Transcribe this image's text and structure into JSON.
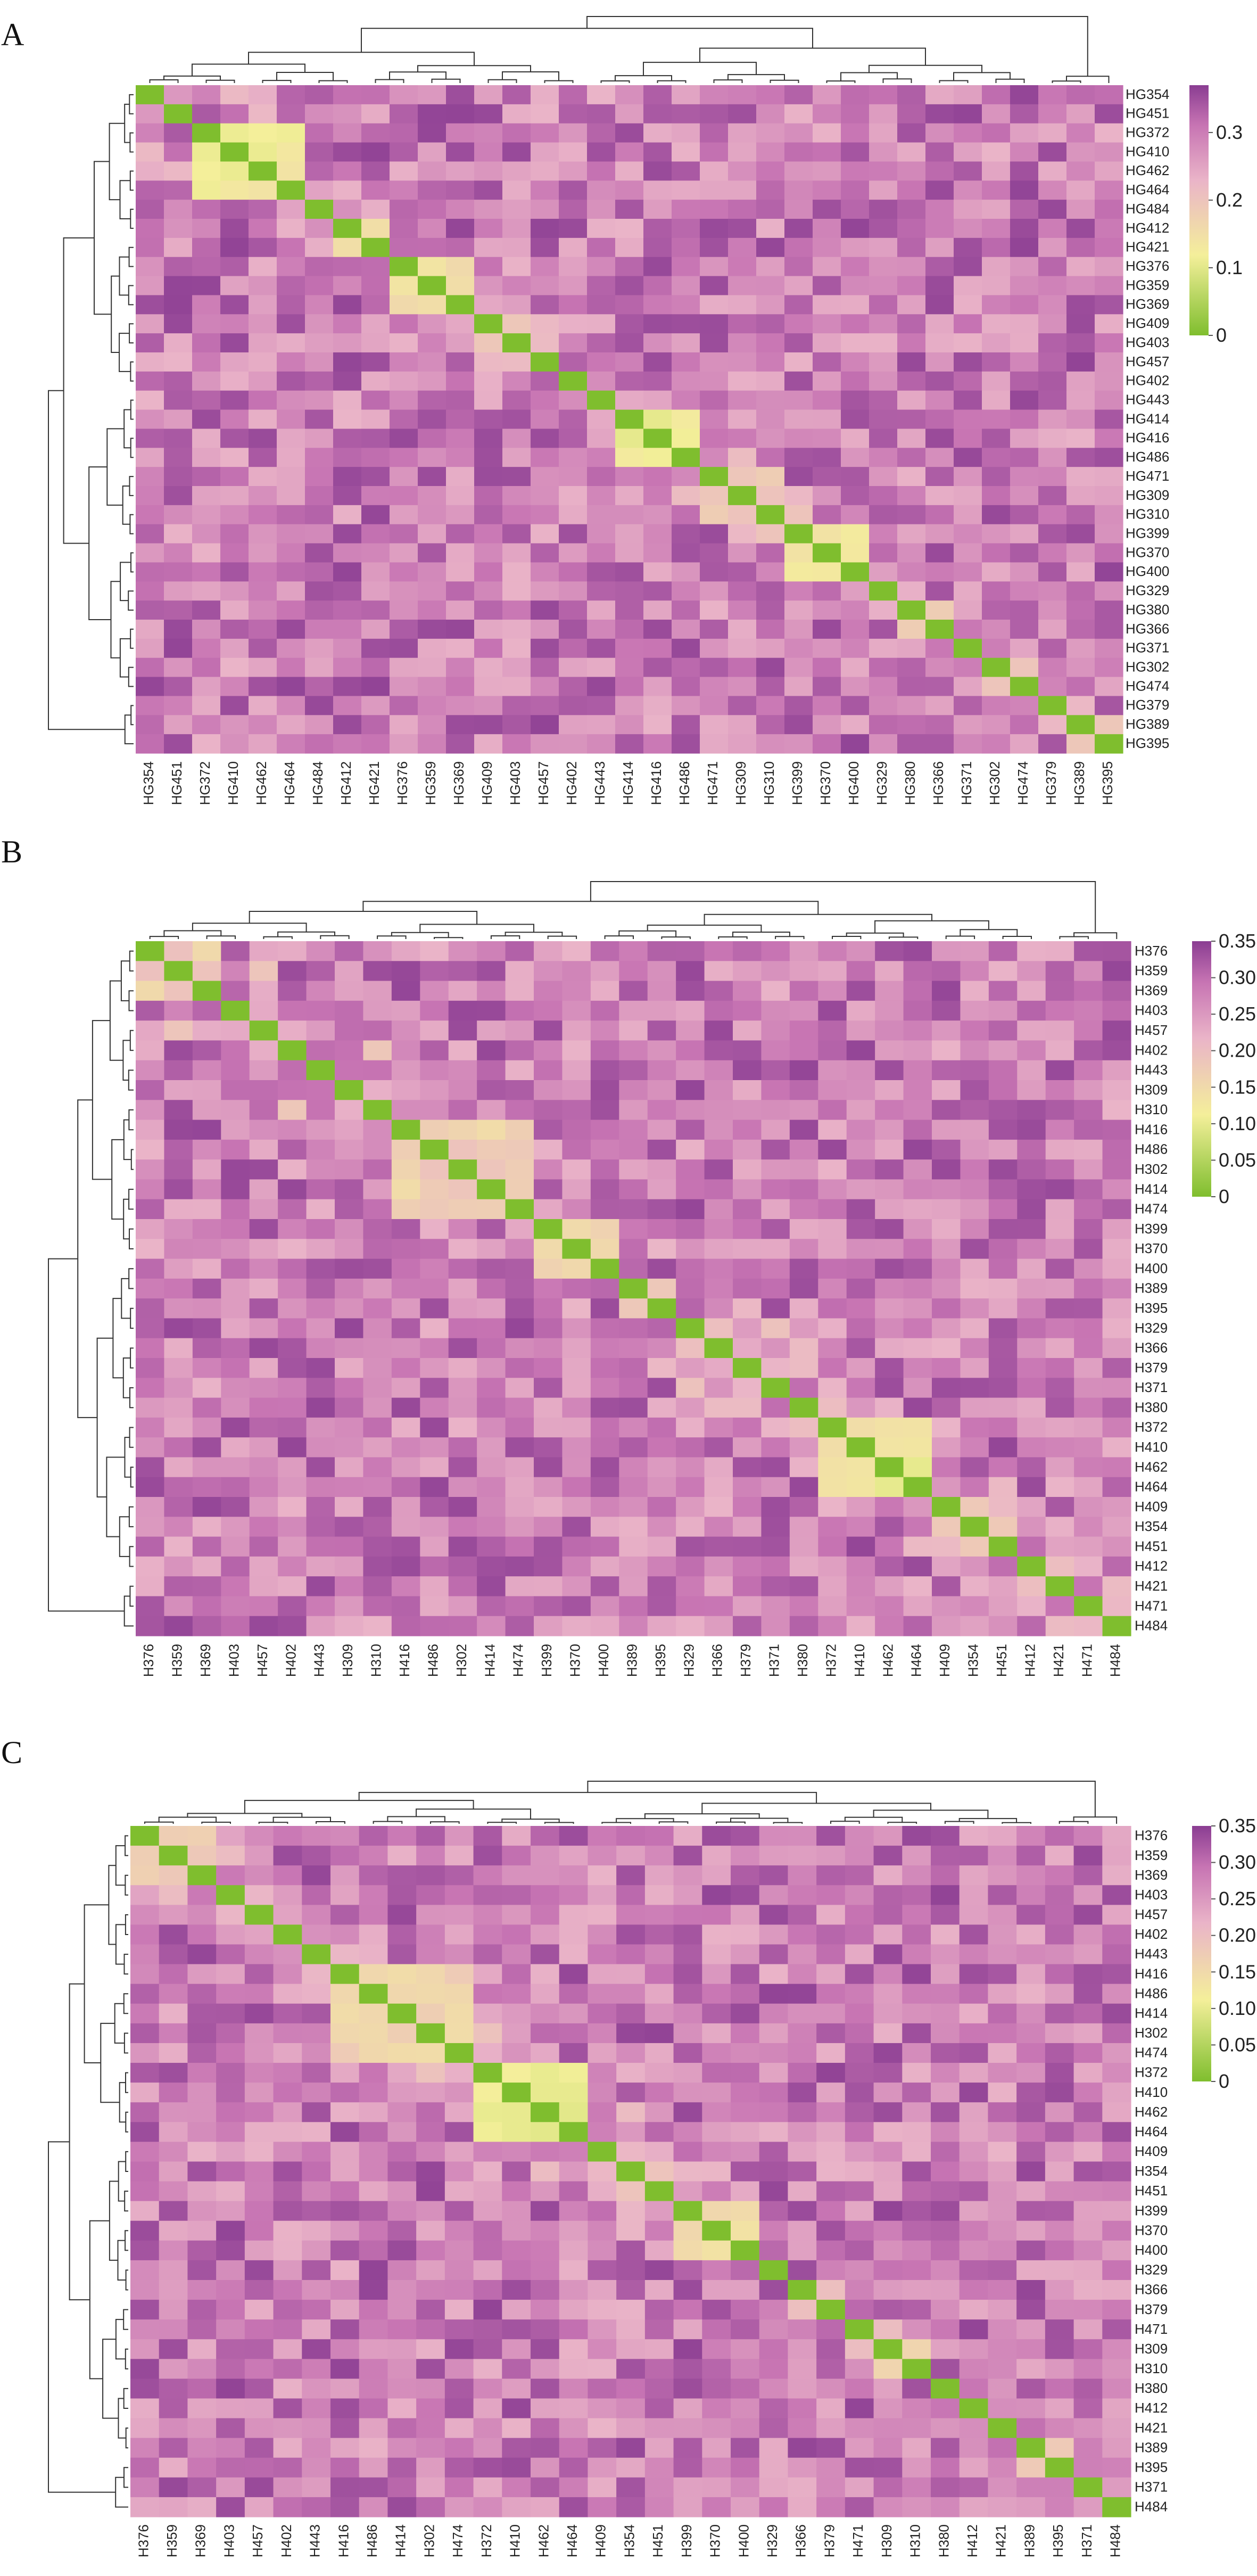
{
  "colorscale": {
    "stops": [
      "#7fbe2e",
      "#f4ef9a",
      "#eab4c8",
      "#c774b3",
      "#8a3d92"
    ],
    "low_color": "#7fbe2e",
    "high_color": "#8a3d92"
  },
  "panels": [
    {
      "letter": "A",
      "colorbar": {
        "ticks": [
          0,
          0.1,
          0.2,
          0.3
        ],
        "tick_labels": [
          "0",
          "0.1",
          "0.2",
          "0.3"
        ],
        "max": 0.37
      },
      "row_labels": [
        "HG354",
        "HG451",
        "HG372",
        "HG410",
        "HG462",
        "HG464",
        "HG484",
        "HG412",
        "HG421",
        "HG376",
        "HG359",
        "HG369",
        "HG409",
        "HG403",
        "HG457",
        "HG402",
        "HG443",
        "HG414",
        "HG416",
        "HG486",
        "HG471",
        "HG309",
        "HG310",
        "HG399",
        "HG370",
        "HG400",
        "HG329",
        "HG380",
        "HG366",
        "HG371",
        "HG302",
        "HG474",
        "HG379",
        "HG389",
        "HG395"
      ],
      "col_labels": [
        "HG354",
        "HG451",
        "HG372",
        "HG410",
        "HG462",
        "HG464",
        "HG484",
        "HG412",
        "HG421",
        "HG376",
        "HG359",
        "HG369",
        "HG409",
        "HG403",
        "HG457",
        "HG402",
        "HG443",
        "HG414",
        "HG416",
        "HG486",
        "HG471",
        "HG309",
        "HG310",
        "HG399",
        "HG370",
        "HG400",
        "HG329",
        "HG380",
        "HG366",
        "HG371",
        "HG302",
        "HG474",
        "HG379",
        "HG389",
        "HG395"
      ]
    },
    {
      "letter": "B",
      "colorbar": {
        "ticks": [
          0,
          0.05,
          0.1,
          0.15,
          0.2,
          0.25,
          0.3,
          0.35
        ],
        "tick_labels": [
          "0",
          "0.05",
          "0.10",
          "0.15",
          "0.20",
          "0.25",
          "0.30",
          "0.35"
        ],
        "max": 0.35
      },
      "row_labels": [
        "H376",
        "H359",
        "H369",
        "H403",
        "H457",
        "H402",
        "H443",
        "H309",
        "H310",
        "H416",
        "H486",
        "H302",
        "H414",
        "H474",
        "H399",
        "H370",
        "H400",
        "H389",
        "H395",
        "H329",
        "H366",
        "H379",
        "H371",
        "H380",
        "H372",
        "H410",
        "H462",
        "H464",
        "H409",
        "H354",
        "H451",
        "H412",
        "H421",
        "H471",
        "H484"
      ],
      "col_labels": [
        "H376",
        "H359",
        "H369",
        "H403",
        "H457",
        "H402",
        "H443",
        "H309",
        "H310",
        "H416",
        "H486",
        "H302",
        "H414",
        "H474",
        "H399",
        "H370",
        "H400",
        "H389",
        "H395",
        "H329",
        "H366",
        "H379",
        "H371",
        "H380",
        "H372",
        "H410",
        "H462",
        "H464",
        "H409",
        "H354",
        "H451",
        "H412",
        "H421",
        "H471",
        "H484"
      ]
    },
    {
      "letter": "C",
      "colorbar": {
        "ticks": [
          0,
          0.05,
          0.1,
          0.15,
          0.2,
          0.25,
          0.3,
          0.35
        ],
        "tick_labels": [
          "0",
          "0.05",
          "0.10",
          "0.15",
          "0.20",
          "0.25",
          "0.30",
          "0.35"
        ],
        "max": 0.35
      },
      "row_labels": [
        "H376",
        "H359",
        "H369",
        "H403",
        "H457",
        "H402",
        "H443",
        "H416",
        "H486",
        "H414",
        "H302",
        "H474",
        "H372",
        "H410",
        "H462",
        "H464",
        "H409",
        "H354",
        "H451",
        "H399",
        "H370",
        "H400",
        "H329",
        "H366",
        "H379",
        "H471",
        "H309",
        "H310",
        "H380",
        "H412",
        "H421",
        "H389",
        "H395",
        "H371",
        "H484"
      ],
      "col_labels": [
        "H376",
        "H359",
        "H369",
        "H403",
        "H457",
        "H402",
        "H443",
        "H416",
        "H486",
        "H414",
        "H302",
        "H474",
        "H372",
        "H410",
        "H462",
        "H464",
        "H409",
        "H354",
        "H451",
        "H399",
        "H370",
        "H400",
        "H329",
        "H366",
        "H379",
        "H471",
        "H309",
        "H310",
        "H380",
        "H412",
        "H421",
        "H389",
        "H395",
        "H371",
        "H484"
      ]
    }
  ],
  "chart_data": [
    {
      "type": "heatmap",
      "panel": "A",
      "matrix_size": 35,
      "diagonal_value": 0,
      "value_range": [
        0,
        0.37
      ],
      "low_distance_clusters": [
        {
          "members": [
            "HG372",
            "HG410",
            "HG462",
            "HG464"
          ],
          "typical_value": 0.13
        },
        {
          "members": [
            "HG412",
            "HG421"
          ],
          "typical_value": 0.15
        },
        {
          "members": [
            "HG376",
            "HG359",
            "HG369"
          ],
          "typical_value": 0.15
        },
        {
          "members": [
            "HG409",
            "HG403",
            "HG457"
          ],
          "typical_value": 0.2
        },
        {
          "members": [
            "HG414",
            "HG416",
            "HG486"
          ],
          "typical_value": 0.12
        },
        {
          "members": [
            "HG471",
            "HG309",
            "HG310"
          ],
          "typical_value": 0.18
        },
        {
          "members": [
            "HG399",
            "HG370",
            "HG400"
          ],
          "typical_value": 0.13
        },
        {
          "members": [
            "HG380",
            "HG366"
          ],
          "typical_value": 0.18
        },
        {
          "members": [
            "HG302",
            "HG474"
          ],
          "typical_value": 0.2
        }
      ]
    },
    {
      "type": "heatmap",
      "panel": "B",
      "matrix_size": 35,
      "diagonal_value": 0,
      "value_range": [
        0,
        0.35
      ],
      "low_distance_clusters": [
        {
          "members": [
            "H376",
            "H359",
            "H369"
          ],
          "typical_value": 0.17
        },
        {
          "members": [
            "H309",
            "H310"
          ],
          "typical_value": 0.2
        },
        {
          "members": [
            "H416",
            "H486",
            "H302",
            "H414",
            "H474"
          ],
          "typical_value": 0.17
        },
        {
          "members": [
            "H399",
            "H370",
            "H400"
          ],
          "typical_value": 0.14
        },
        {
          "members": [
            "H389",
            "H395"
          ],
          "typical_value": 0.17
        },
        {
          "members": [
            "H372",
            "H410",
            "H462",
            "H464"
          ],
          "typical_value": 0.12
        },
        {
          "members": [
            "H409",
            "H354",
            "H451"
          ],
          "typical_value": 0.2
        },
        {
          "members": [
            "H412",
            "H421"
          ],
          "typical_value": 0.18
        }
      ]
    },
    {
      "type": "heatmap",
      "panel": "C",
      "matrix_size": 35,
      "diagonal_value": 0,
      "value_range": [
        0,
        0.35
      ],
      "low_distance_clusters": [
        {
          "members": [
            "H376",
            "H359",
            "H369"
          ],
          "typical_value": 0.16
        },
        {
          "members": [
            "H416",
            "H486",
            "H414",
            "H302",
            "H474"
          ],
          "typical_value": 0.16
        },
        {
          "members": [
            "H372",
            "H410",
            "H462",
            "H464"
          ],
          "typical_value": 0.12
        },
        {
          "members": [
            "H409",
            "H354",
            "H451"
          ],
          "typical_value": 0.2
        },
        {
          "members": [
            "H399",
            "H370",
            "H400"
          ],
          "typical_value": 0.14
        },
        {
          "members": [
            "H366",
            "H379"
          ],
          "typical_value": 0.18
        },
        {
          "members": [
            "H309",
            "H310"
          ],
          "typical_value": 0.18
        },
        {
          "members": [
            "H389",
            "H395"
          ],
          "typical_value": 0.16
        }
      ]
    }
  ]
}
